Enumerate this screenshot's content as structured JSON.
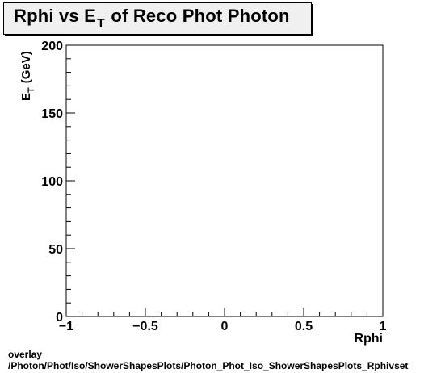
{
  "title": {
    "prefix": "Rphi vs E",
    "subscript": "T",
    "suffix": " of Reco Phot Photon"
  },
  "footer": {
    "line1": "overlay",
    "line2": "/Photon/Phot/Iso/ShowerShapesPlots/Photon_Phot_Iso_ShowerShapesPlots_Rphivset"
  },
  "chart_data": {
    "type": "scatter",
    "title": "Rphi vs E_T of Reco Phot Photon",
    "xlabel": "Rphi",
    "ylabel": "E_T (GeV)",
    "ylabel_main": "E",
    "ylabel_sub": "T",
    "ylabel_unit": "(GeV)",
    "xlim": [
      -1,
      1
    ],
    "ylim": [
      0,
      200
    ],
    "x_ticks": [
      -1,
      -0.5,
      0,
      0.5,
      1
    ],
    "x_tick_labels": [
      "−1",
      "−0.5",
      "0",
      "0.5",
      "1"
    ],
    "y_ticks": [
      0,
      50,
      100,
      150,
      200
    ],
    "y_tick_labels": [
      "0",
      "50",
      "100",
      "150",
      "200"
    ],
    "grid": false,
    "series": []
  }
}
